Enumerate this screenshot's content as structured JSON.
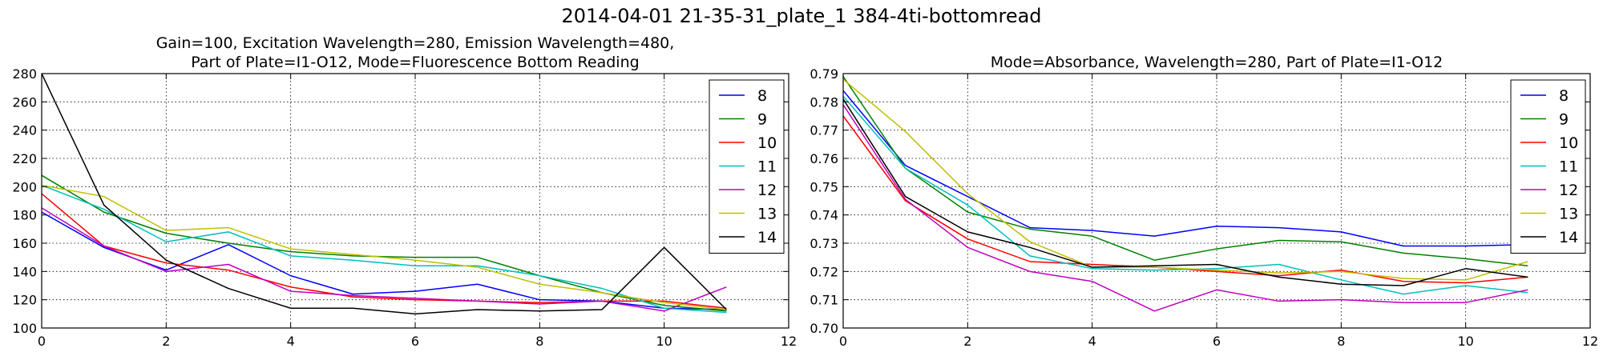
{
  "figure": {
    "suptitle": "2014-04-01 21-35-31_plate_1 384-4ti-bottomread"
  },
  "chart_data": [
    {
      "type": "line",
      "title": "Gain=100, Excitation Wavelength=280, Emission Wavelength=480,\nPart of Plate=I1-O12, Mode=Fluorescence Bottom Reading",
      "xlabel": "",
      "ylabel": "",
      "xlim": [
        0,
        12
      ],
      "ylim": [
        100,
        280
      ],
      "xticks": [
        0,
        2,
        4,
        6,
        8,
        10,
        12
      ],
      "yticks": [
        100,
        120,
        140,
        160,
        180,
        200,
        220,
        240,
        260,
        280
      ],
      "grid": true,
      "legend_position": "upper-right",
      "x": [
        0,
        1,
        2,
        3,
        4,
        5,
        6,
        7,
        8,
        9,
        10,
        11
      ],
      "series": [
        {
          "name": "8",
          "color": "#0000ff",
          "values": [
            182,
            157,
            141,
            159,
            137,
            124,
            126,
            131,
            120,
            119,
            114,
            113
          ]
        },
        {
          "name": "9",
          "color": "#008000",
          "values": [
            208,
            182,
            167,
            160,
            154,
            151,
            150,
            150,
            137,
            125,
            116,
            112
          ]
        },
        {
          "name": "10",
          "color": "#ff0000",
          "values": [
            195,
            158,
            146,
            141,
            129,
            122,
            120,
            119,
            118,
            119,
            119,
            114
          ]
        },
        {
          "name": "11",
          "color": "#00bfbf",
          "values": [
            201,
            184,
            161,
            168,
            151,
            148,
            144,
            144,
            137,
            128,
            114,
            111
          ]
        },
        {
          "name": "12",
          "color": "#bf00bf",
          "values": [
            185,
            158,
            140,
            145,
            126,
            123,
            121,
            119,
            117,
            119,
            112,
            129
          ]
        },
        {
          "name": "13",
          "color": "#bfbf00",
          "values": [
            201,
            193,
            169,
            171,
            156,
            152,
            148,
            143,
            131,
            125,
            118,
            113
          ]
        },
        {
          "name": "14",
          "color": "#000000",
          "values": [
            280,
            187,
            148,
            128,
            114,
            114,
            110,
            113,
            112,
            113,
            157,
            113
          ]
        }
      ]
    },
    {
      "type": "line",
      "title": "Mode=Absorbance, Wavelength=280, Part of Plate=I1-O12",
      "xlabel": "",
      "ylabel": "",
      "xlim": [
        0,
        12
      ],
      "ylim": [
        0.7,
        0.79
      ],
      "xticks": [
        0,
        2,
        4,
        6,
        8,
        10,
        12
      ],
      "yticks": [
        0.7,
        0.71,
        0.72,
        0.73,
        0.74,
        0.75,
        0.76,
        0.77,
        0.78,
        0.79
      ],
      "grid": true,
      "legend_position": "upper-right",
      "x": [
        0,
        1,
        2,
        3,
        4,
        5,
        6,
        7,
        8,
        9,
        10,
        11
      ],
      "series": [
        {
          "name": "8",
          "color": "#0000ff",
          "values": [
            0.784,
            0.7575,
            0.7465,
            0.7355,
            0.7345,
            0.7325,
            0.736,
            0.7355,
            0.734,
            0.729,
            0.729,
            0.7295
          ]
        },
        {
          "name": "9",
          "color": "#008000",
          "values": [
            0.789,
            0.7565,
            0.741,
            0.735,
            0.7325,
            0.724,
            0.728,
            0.731,
            0.7305,
            0.7265,
            0.7245,
            0.722
          ]
        },
        {
          "name": "10",
          "color": "#ff0000",
          "values": [
            0.775,
            0.745,
            0.7315,
            0.7235,
            0.7225,
            0.7215,
            0.72,
            0.7185,
            0.7205,
            0.7165,
            0.716,
            0.718
          ]
        },
        {
          "name": "11",
          "color": "#00bfbf",
          "values": [
            0.782,
            0.7565,
            0.7435,
            0.7255,
            0.721,
            0.7205,
            0.721,
            0.7225,
            0.717,
            0.712,
            0.715,
            0.7125
          ]
        },
        {
          "name": "12",
          "color": "#bf00bf",
          "values": [
            0.779,
            0.7455,
            0.7285,
            0.72,
            0.7165,
            0.706,
            0.7135,
            0.7095,
            0.71,
            0.709,
            0.709,
            0.7135
          ]
        },
        {
          "name": "13",
          "color": "#bfbf00",
          "values": [
            0.788,
            0.7695,
            0.7475,
            0.7305,
            0.7215,
            0.7215,
            0.7205,
            0.7195,
            0.72,
            0.7175,
            0.717,
            0.7235
          ]
        },
        {
          "name": "14",
          "color": "#000000",
          "values": [
            0.781,
            0.7465,
            0.734,
            0.7285,
            0.7215,
            0.722,
            0.7225,
            0.718,
            0.7155,
            0.715,
            0.721,
            0.718
          ]
        }
      ]
    }
  ]
}
